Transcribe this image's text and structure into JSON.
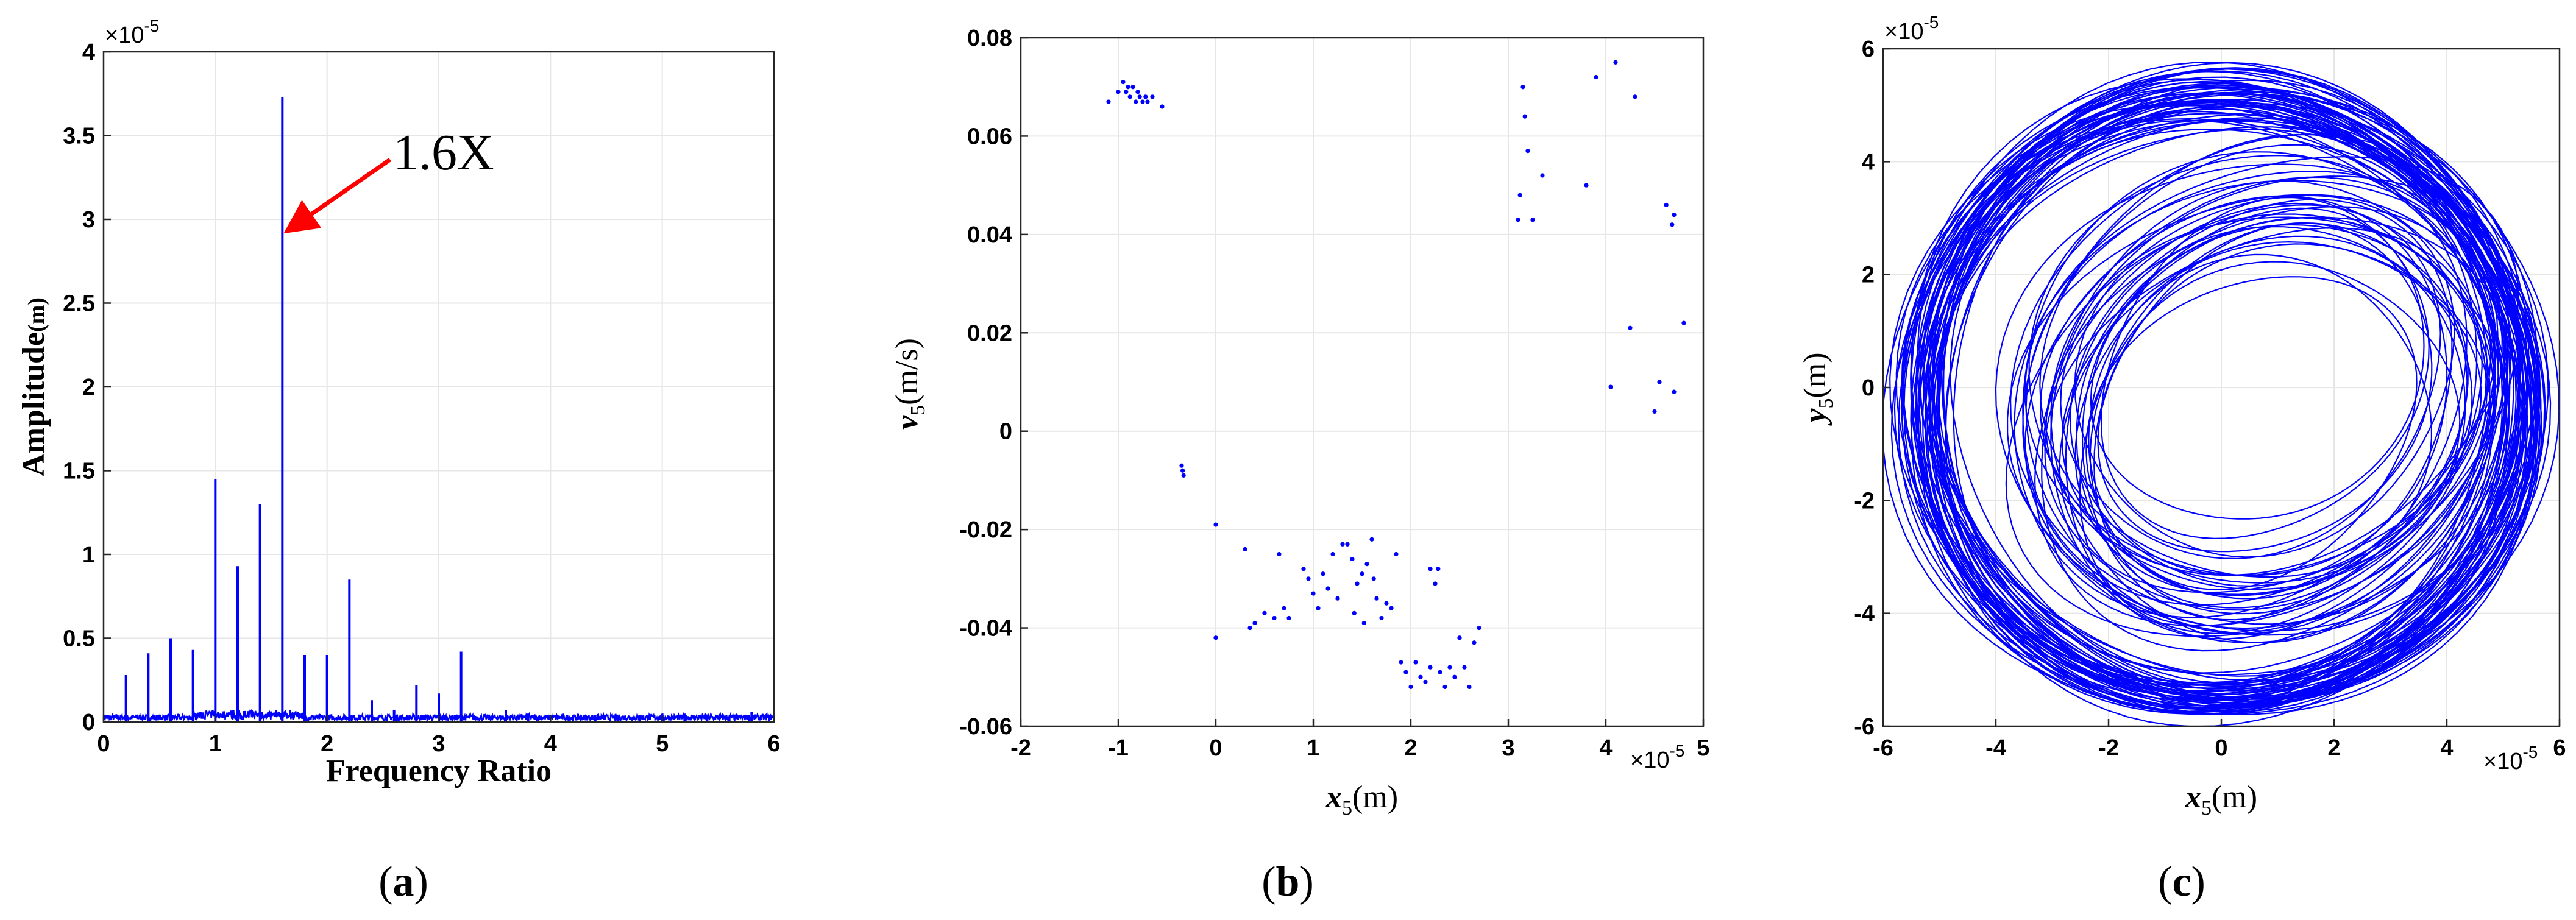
{
  "figure": {
    "panel_labels": [
      "(a)",
      "(b)",
      "(c)"
    ]
  },
  "colors": {
    "series": "#0000ff",
    "annotation_arrow": "#ff0000",
    "grid": "#e6e6e6",
    "axes": "#262626"
  },
  "chart_data": [
    {
      "id": "a",
      "type": "line",
      "xlabel": "Frequency Ratio",
      "ylabel_main": "Amplitude",
      "ylabel_unit": "(m)",
      "y_multiplier": "×10",
      "y_multiplier_exp": "-5",
      "xlim": [
        0,
        6
      ],
      "ylim": [
        0,
        4
      ],
      "xticks": [
        "0",
        "1",
        "2",
        "3",
        "4",
        "5",
        "6"
      ],
      "yticks": [
        "0",
        "0.5",
        "1",
        "1.5",
        "2",
        "2.5",
        "3",
        "3.5",
        "4"
      ],
      "grid": true,
      "annotation": {
        "text": "1.6X",
        "x": 1.6,
        "y": 2.9
      },
      "noise_floor": 0.03,
      "peaks": [
        {
          "x": 0.2,
          "y": 0.28
        },
        {
          "x": 0.4,
          "y": 0.41
        },
        {
          "x": 0.6,
          "y": 0.5
        },
        {
          "x": 0.8,
          "y": 0.43
        },
        {
          "x": 1.0,
          "y": 1.45
        },
        {
          "x": 1.2,
          "y": 0.93
        },
        {
          "x": 1.4,
          "y": 1.3
        },
        {
          "x": 1.6,
          "y": 3.73
        },
        {
          "x": 1.8,
          "y": 0.4
        },
        {
          "x": 2.0,
          "y": 0.4
        },
        {
          "x": 2.2,
          "y": 0.85
        },
        {
          "x": 2.4,
          "y": 0.13
        },
        {
          "x": 2.6,
          "y": 0.07
        },
        {
          "x": 2.8,
          "y": 0.22
        },
        {
          "x": 3.0,
          "y": 0.17
        },
        {
          "x": 3.2,
          "y": 0.42
        },
        {
          "x": 3.6,
          "y": 0.07
        },
        {
          "x": 3.8,
          "y": 0.05
        },
        {
          "x": 4.2,
          "y": 0.04
        },
        {
          "x": 4.4,
          "y": 0.04
        },
        {
          "x": 4.6,
          "y": 0.03
        },
        {
          "x": 4.8,
          "y": 0.04
        },
        {
          "x": 5.0,
          "y": 0.04
        },
        {
          "x": 5.2,
          "y": 0.05
        },
        {
          "x": 5.4,
          "y": 0.03
        },
        {
          "x": 5.6,
          "y": 0.03
        },
        {
          "x": 5.8,
          "y": 0.06
        }
      ]
    },
    {
      "id": "b",
      "type": "scatter",
      "xlabel_var": "x",
      "xlabel_sub": "5",
      "xlabel_unit": "(m)",
      "ylabel_var": "v",
      "ylabel_sub": "5",
      "ylabel_unit": "(m/s)",
      "x_multiplier": "×10",
      "x_multiplier_exp": "-5",
      "xlim": [
        -2,
        5
      ],
      "ylim": [
        -0.06,
        0.08
      ],
      "xticks": [
        "-2",
        "-1",
        "0",
        "1",
        "2",
        "3",
        "4",
        "5"
      ],
      "yticks": [
        "-0.06",
        "-0.04",
        "-0.02",
        "0",
        "0.02",
        "0.04",
        "0.06",
        "0.08"
      ],
      "grid": true,
      "points": [
        [
          -1.1,
          0.067
        ],
        [
          -1.0,
          0.069
        ],
        [
          -0.95,
          0.071
        ],
        [
          -0.92,
          0.069
        ],
        [
          -0.9,
          0.07
        ],
        [
          -0.88,
          0.068
        ],
        [
          -0.85,
          0.07
        ],
        [
          -0.82,
          0.067
        ],
        [
          -0.8,
          0.069
        ],
        [
          -0.78,
          0.068
        ],
        [
          -0.75,
          0.067
        ],
        [
          -0.72,
          0.068
        ],
        [
          -0.7,
          0.067
        ],
        [
          -0.65,
          0.068
        ],
        [
          -0.55,
          0.066
        ],
        [
          -0.35,
          -0.007
        ],
        [
          -0.34,
          -0.008
        ],
        [
          -0.33,
          -0.009
        ],
        [
          0.0,
          -0.019
        ],
        [
          0.0,
          -0.042
        ],
        [
          0.3,
          -0.024
        ],
        [
          0.35,
          -0.04
        ],
        [
          0.4,
          -0.039
        ],
        [
          0.5,
          -0.037
        ],
        [
          0.6,
          -0.038
        ],
        [
          0.65,
          -0.025
        ],
        [
          0.7,
          -0.036
        ],
        [
          0.75,
          -0.038
        ],
        [
          0.9,
          -0.028
        ],
        [
          0.95,
          -0.03
        ],
        [
          1.0,
          -0.033
        ],
        [
          1.05,
          -0.036
        ],
        [
          1.1,
          -0.029
        ],
        [
          1.15,
          -0.032
        ],
        [
          1.2,
          -0.025
        ],
        [
          1.25,
          -0.034
        ],
        [
          1.3,
          -0.023
        ],
        [
          1.35,
          -0.023
        ],
        [
          1.4,
          -0.026
        ],
        [
          1.42,
          -0.037
        ],
        [
          1.45,
          -0.031
        ],
        [
          1.5,
          -0.029
        ],
        [
          1.52,
          -0.039
        ],
        [
          1.55,
          -0.027
        ],
        [
          1.6,
          -0.022
        ],
        [
          1.62,
          -0.03
        ],
        [
          1.65,
          -0.034
        ],
        [
          1.7,
          -0.038
        ],
        [
          1.75,
          -0.035
        ],
        [
          1.8,
          -0.036
        ],
        [
          1.85,
          -0.025
        ],
        [
          1.9,
          -0.047
        ],
        [
          1.95,
          -0.049
        ],
        [
          2.0,
          -0.052
        ],
        [
          2.05,
          -0.047
        ],
        [
          2.1,
          -0.05
        ],
        [
          2.15,
          -0.051
        ],
        [
          2.2,
          -0.028
        ],
        [
          2.25,
          -0.031
        ],
        [
          2.3,
          -0.049
        ],
        [
          2.35,
          -0.052
        ],
        [
          2.4,
          -0.048
        ],
        [
          2.45,
          -0.05
        ],
        [
          2.5,
          -0.042
        ],
        [
          2.55,
          -0.048
        ],
        [
          2.6,
          -0.052
        ],
        [
          2.65,
          -0.043
        ],
        [
          2.7,
          -0.04
        ],
        [
          2.2,
          -0.048
        ],
        [
          2.28,
          -0.028
        ],
        [
          3.1,
          0.043
        ],
        [
          3.12,
          0.048
        ],
        [
          3.15,
          0.07
        ],
        [
          3.17,
          0.064
        ],
        [
          3.2,
          0.057
        ],
        [
          3.25,
          0.043
        ],
        [
          3.35,
          0.052
        ],
        [
          3.8,
          0.05
        ],
        [
          3.9,
          0.072
        ],
        [
          4.05,
          0.009
        ],
        [
          4.1,
          0.075
        ],
        [
          4.25,
          0.021
        ],
        [
          4.3,
          0.068
        ],
        [
          4.5,
          0.004
        ],
        [
          4.55,
          0.01
        ],
        [
          4.62,
          0.046
        ],
        [
          4.68,
          0.042
        ],
        [
          4.7,
          0.044
        ],
        [
          4.7,
          0.008
        ],
        [
          4.8,
          0.022
        ]
      ]
    },
    {
      "id": "c",
      "type": "line",
      "xlabel_var": "x",
      "xlabel_sub": "5",
      "xlabel_unit": "(m)",
      "ylabel_var": "y",
      "ylabel_sub": "5",
      "ylabel_unit": "(m)",
      "x_multiplier": "×10",
      "x_multiplier_exp": "-5",
      "y_multiplier": "×10",
      "y_multiplier_exp": "-5",
      "xlim": [
        -6,
        6
      ],
      "ylim": [
        -6,
        6
      ],
      "xticks": [
        "-6",
        "-4",
        "-2",
        "0",
        "2",
        "4",
        "6"
      ],
      "yticks": [
        "-6",
        "-4",
        "-2",
        "0",
        "2",
        "4",
        "6"
      ],
      "grid": true,
      "orbit": {
        "outer_radius_range": [
          5.0,
          5.7
        ],
        "inner_radius_range": [
          3.0,
          4.6
        ],
        "inner_center_range": [
          [
            0.5,
            -0.8
          ],
          [
            1.2,
            0.5
          ]
        ],
        "loops": 90
      }
    }
  ]
}
